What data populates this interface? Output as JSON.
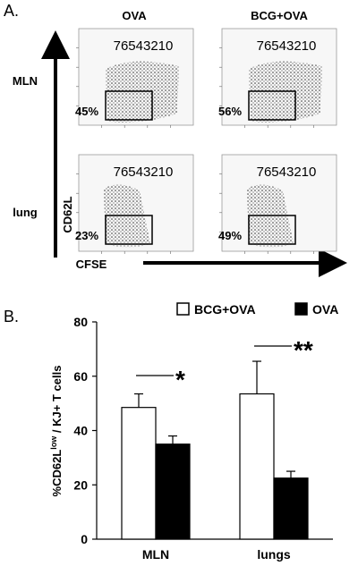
{
  "panel_a": {
    "label": "A.",
    "columns": [
      "OVA",
      "BCG+OVA"
    ],
    "rows": [
      "MLN",
      "lung"
    ],
    "y_axis": "CD62L",
    "x_axis": "CFSE",
    "plots": [
      {
        "peak_label": "76543210",
        "percent": "45%"
      },
      {
        "peak_label": "76543210",
        "percent": "56%"
      },
      {
        "peak_label": "76543210",
        "percent": "23%"
      },
      {
        "peak_label": "76543210",
        "percent": "49%"
      }
    ]
  },
  "chart_data": {
    "type": "bar",
    "label": "B.",
    "ylabel": [
      "%CD62L",
      "low",
      " / KJ+ T cells"
    ],
    "categories": [
      "MLN",
      "lungs"
    ],
    "series": [
      {
        "name": "BCG+OVA",
        "color": "#ffffff",
        "values": [
          48.5,
          53.5
        ],
        "errors": [
          5,
          12
        ]
      },
      {
        "name": "OVA",
        "color": "#000000",
        "values": [
          35,
          22.5
        ],
        "errors": [
          3,
          2.5
        ]
      }
    ],
    "ylim": [
      0,
      80
    ],
    "yticks": [
      0,
      20,
      40,
      60,
      80
    ],
    "annotations": [
      "*",
      "**"
    ]
  }
}
